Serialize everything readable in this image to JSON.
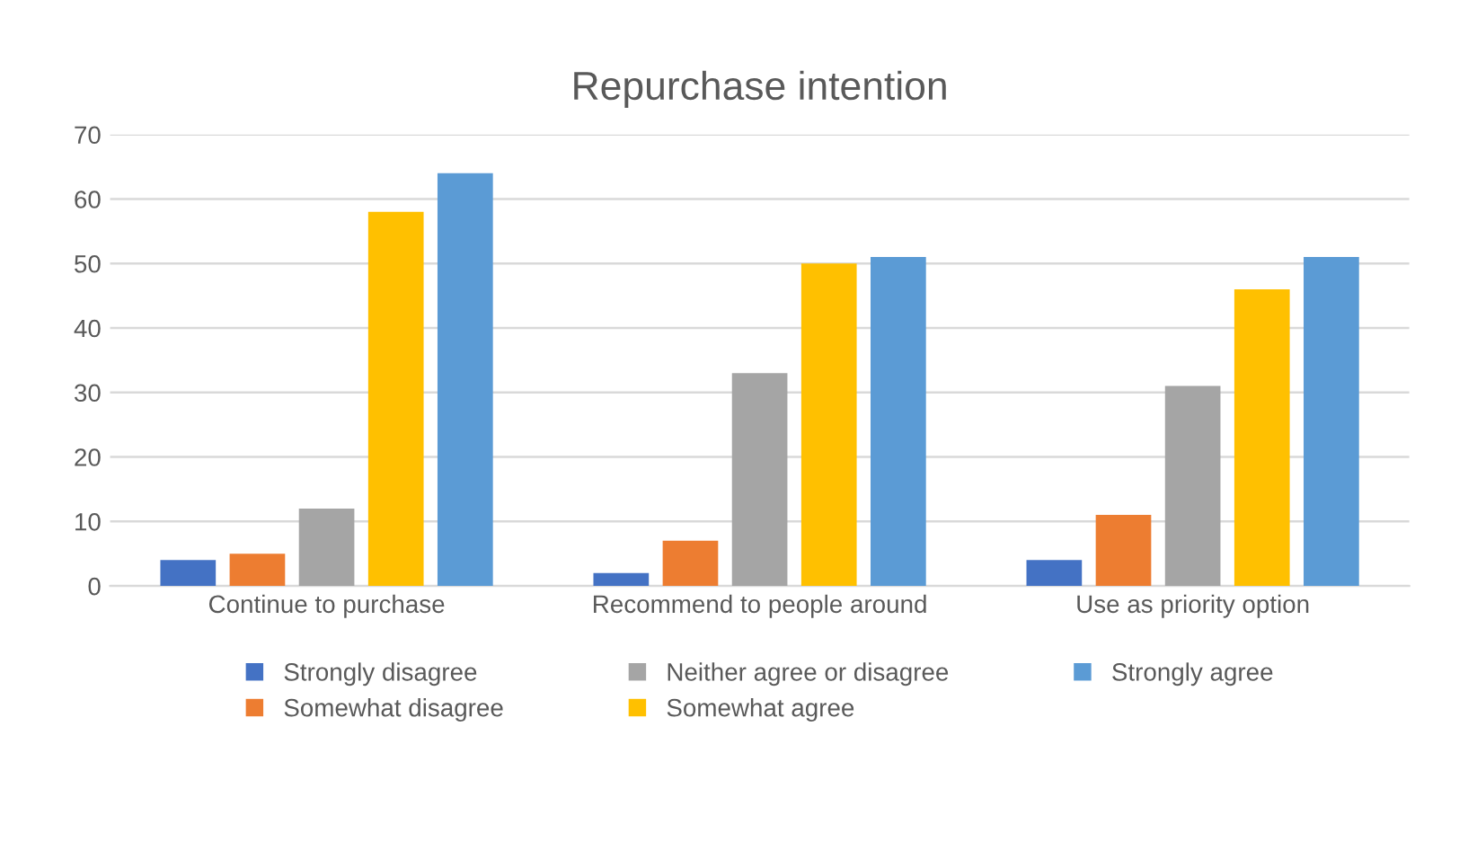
{
  "chart_data": {
    "type": "bar",
    "title": "Repurchase intention",
    "categories": [
      "Continue to purchase",
      "Recommend to people around",
      "Use as priority option"
    ],
    "series": [
      {
        "name": "Strongly disagree",
        "color": "#4472c4",
        "values": [
          4,
          2,
          4
        ]
      },
      {
        "name": "Somewhat disagree",
        "color": "#ed7d31",
        "values": [
          5,
          7,
          11
        ]
      },
      {
        "name": "Neither agree or disagree",
        "color": "#a5a5a5",
        "values": [
          12,
          33,
          31
        ]
      },
      {
        "name": "Somewhat agree",
        "color": "#ffc000",
        "values": [
          58,
          50,
          46
        ]
      },
      {
        "name": "Strongly agree",
        "color": "#5b9bd5",
        "values": [
          64,
          51,
          51
        ]
      }
    ],
    "ylim": [
      0,
      70
    ],
    "yticks": [
      0,
      10,
      20,
      30,
      40,
      50,
      60,
      70
    ],
    "grid": "y",
    "legend": "bottom"
  }
}
